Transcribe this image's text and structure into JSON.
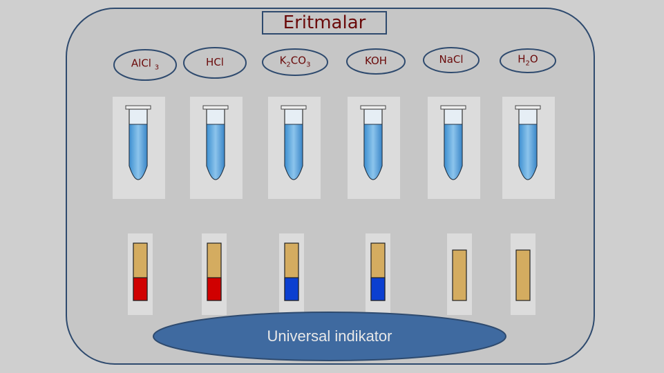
{
  "title": "Eritmalar",
  "solutions": [
    {
      "parts": [
        {
          "t": "AlCl "
        },
        {
          "sub": "3"
        }
      ],
      "strip": "#d00000"
    },
    {
      "parts": [
        {
          "t": "HCl"
        }
      ],
      "strip": "#d00000"
    },
    {
      "parts": [
        {
          "t": "K"
        },
        {
          "sub": "2"
        },
        {
          "t": "CO"
        },
        {
          "sub": "3"
        }
      ],
      "strip": "#0b3fd0"
    },
    {
      "parts": [
        {
          "t": "KOH"
        }
      ],
      "strip": "#0b3fd0"
    },
    {
      "parts": [
        {
          "t": "NaCl"
        }
      ],
      "strip": null
    },
    {
      "parts": [
        {
          "t": "H"
        },
        {
          "sub": "2"
        },
        {
          "t": "O"
        }
      ],
      "strip": null
    }
  ],
  "indicator": "Universal indikator"
}
